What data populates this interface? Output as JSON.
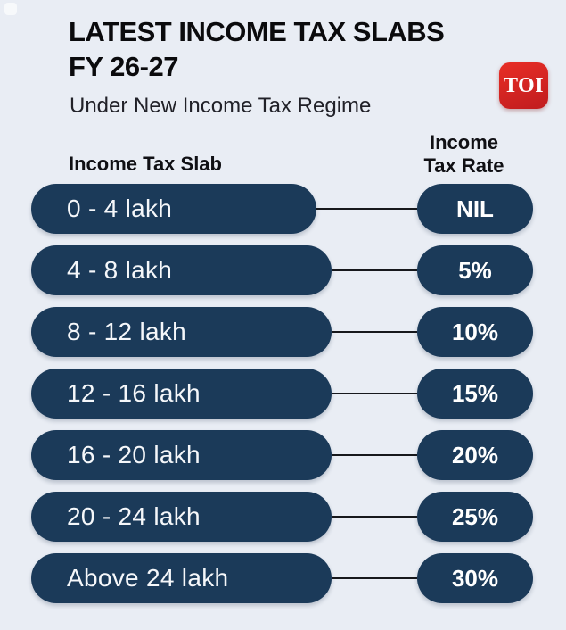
{
  "page": {
    "background_color": "#e9edf4",
    "pill_color": "#1b3a59",
    "connector_color": "#17181c",
    "pill_text_color": "#f5f7fa"
  },
  "header": {
    "title_line1": "LATEST INCOME TAX SLABS",
    "title_line2": "FY 26-27",
    "subtitle": "Under New Income Tax Regime",
    "logo": {
      "text": "TOI",
      "color": "#d0201f"
    }
  },
  "table": {
    "col1_header": "Income Tax Slab",
    "col2_header_line1": "Income",
    "col2_header_line2": "Tax Rate",
    "rows": [
      {
        "slab": "0 - 4 lakh",
        "rate": "NIL"
      },
      {
        "slab": "4 - 8 lakh",
        "rate": "5%"
      },
      {
        "slab": "8 - 12 lakh",
        "rate": "10%"
      },
      {
        "slab": "12 - 16 lakh",
        "rate": "15%"
      },
      {
        "slab": "16 - 20 lakh",
        "rate": "20%"
      },
      {
        "slab": "20 - 24 lakh",
        "rate": "25%"
      },
      {
        "slab": "Above 24 lakh",
        "rate": "30%"
      }
    ]
  },
  "chart_data": {
    "type": "table",
    "title": "LATEST INCOME TAX SLABS FY 26-27",
    "subtitle": "Under New Income Tax Regime",
    "columns": [
      "Income Tax Slab",
      "Income Tax Rate"
    ],
    "rows": [
      [
        "0 - 4 lakh",
        "NIL"
      ],
      [
        "4 - 8 lakh",
        "5%"
      ],
      [
        "8 - 12 lakh",
        "10%"
      ],
      [
        "12 - 16 lakh",
        "15%"
      ],
      [
        "16 - 20 lakh",
        "20%"
      ],
      [
        "20 - 24 lakh",
        "25%"
      ],
      [
        "Above 24 lakh",
        "30%"
      ]
    ]
  }
}
